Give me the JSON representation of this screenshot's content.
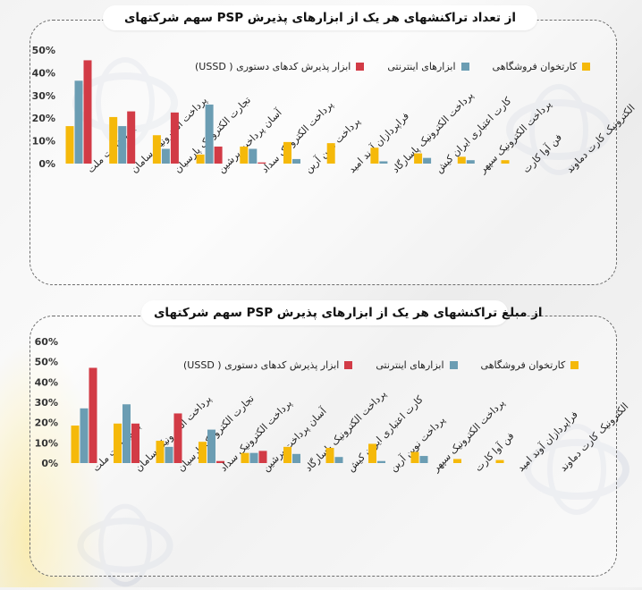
{
  "colors": {
    "ussd": "#d23b46",
    "internet": "#6b9db3",
    "pos": "#f5b90a",
    "axis_text": "#333333"
  },
  "watermark_icon": "logo-swirl-icon",
  "chart_data": [
    {
      "type": "bar",
      "title": "سهم شرکتهای PSP از تعداد تراکنشهای هر یک از ابزارهای پذیرش",
      "categories": [
        "به پرداخت ملت",
        "پرداخت الکترونیک سامان",
        "تجارت الکترونیک پارسیان",
        "آسان پرداخت پرشین",
        "پرداخت الکترونیک سداد",
        "پرداخت نوین آرین",
        "فراپردازان آوند امید",
        "پرداخت الکترونیک پاسارگاد",
        "کارت اعتباری ایران کیش",
        "پرداخت الکترونیک سپهر",
        "فن آوا کارت",
        "الکترونیک کارت دماوند"
      ],
      "series": [
        {
          "name": "کارتخوان فروشگاهی",
          "values": [
            16.5,
            20.5,
            12.5,
            4,
            7.5,
            9.5,
            9,
            7,
            4.5,
            3,
            1.5,
            0
          ]
        },
        {
          "name": "ابزارهای اینترنتی",
          "values": [
            36.5,
            16.5,
            6.5,
            26,
            6.5,
            2,
            0,
            1,
            2.5,
            1.5,
            0,
            0
          ]
        },
        {
          "name": "ابزار پذیرش کدهای دستوری ( USSD)",
          "values": [
            45.5,
            23,
            22.5,
            7.5,
            0.5,
            0,
            0,
            0,
            0,
            0,
            0,
            0
          ]
        }
      ],
      "yticks": [
        "0%",
        "10%",
        "20%",
        "30%",
        "40%",
        "50%"
      ],
      "ylim": [
        0,
        50
      ],
      "legend": "top"
    },
    {
      "type": "bar",
      "title": "سهم شرکتهای PSP از مبلغ تراکنشهای هر یک از ابزارهای پذیرش",
      "categories": [
        "به پرداخت ملت",
        "پرداخت الکترونیک سامان",
        "تجارت الکترونیک پارسیان",
        "پرداخت الکترونیک سداد",
        "آسان پرداخت پرشین",
        "پرداخت الکترونیک پاسارگاد",
        "کارت اعتباری ایران کیش",
        "پرداخت نوین آرین",
        "پرداخت الکترونیک سپهر",
        "فن آوا کارت",
        "فراپردازان آوند امید",
        "الکترونیک کارت دماوند"
      ],
      "series": [
        {
          "name": "کارتخوان فروشگاهی",
          "values": [
            18.5,
            19.5,
            11,
            10.5,
            5,
            8,
            7.5,
            9.5,
            5.5,
            2,
            1.5,
            0
          ]
        },
        {
          "name": "ابزارهای اینترنتی",
          "values": [
            27,
            29,
            8,
            16.5,
            5,
            4.5,
            3,
            1,
            3.5,
            0,
            0,
            0
          ]
        },
        {
          "name": "ابزار پذیرش کدهای دستوری ( USSD)",
          "values": [
            47,
            19.5,
            24.5,
            1,
            6,
            0,
            0,
            0,
            0,
            0,
            0,
            0
          ]
        }
      ],
      "yticks": [
        "0%",
        "10%",
        "20%",
        "30%",
        "40%",
        "50%",
        "60%"
      ],
      "ylim": [
        0,
        60
      ],
      "legend": "top"
    }
  ]
}
